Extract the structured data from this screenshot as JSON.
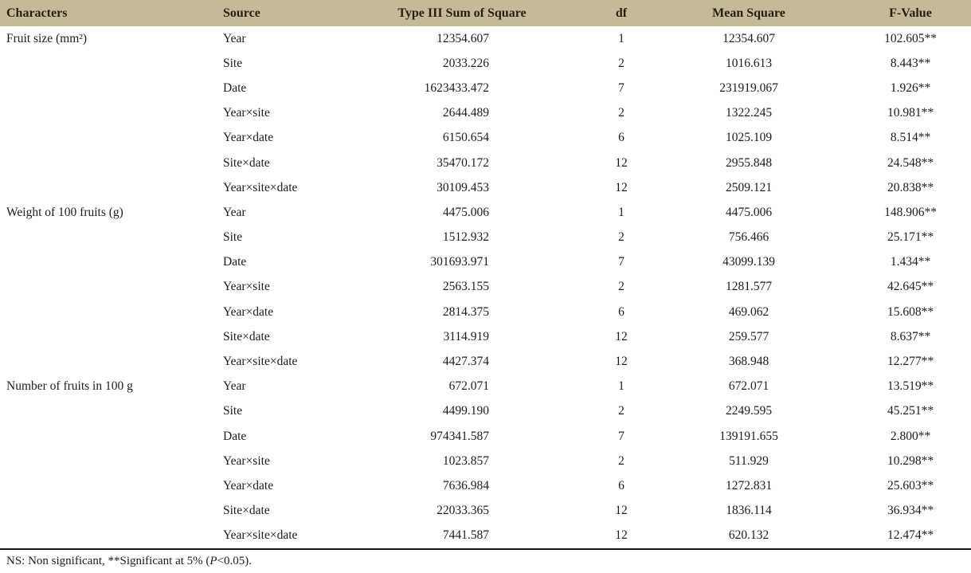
{
  "colors": {
    "header_background": "#c4bb96",
    "header_text": "#241f12",
    "body_text": "#1c1c1c",
    "bottom_rule": "#1a1a1a"
  },
  "table": {
    "columns": {
      "characters": "Characters",
      "source": "Source",
      "sum_of_square": "Type III Sum of Square",
      "df": "df",
      "mean_square": "Mean Square",
      "f_value": "F-Value"
    },
    "groups": [
      {
        "character": "Fruit size (mm²)",
        "rows": [
          {
            "source": "Year",
            "ss": "12354.607",
            "df": "1",
            "ms": "12354.607",
            "f": "102.605**"
          },
          {
            "source": "Site",
            "ss": "2033.226",
            "df": "2",
            "ms": "1016.613",
            "f": "8.443**"
          },
          {
            "source": "Date",
            "ss": "1623433.472",
            "df": "7",
            "ms": "231919.067",
            "f": "1.926**"
          },
          {
            "source": "Year×site",
            "ss": "2644.489",
            "df": "2",
            "ms": "1322.245",
            "f": "10.981**"
          },
          {
            "source": "Year×date",
            "ss": "6150.654",
            "df": "6",
            "ms": "1025.109",
            "f": "8.514**"
          },
          {
            "source": "Site×date",
            "ss": "35470.172",
            "df": "12",
            "ms": "2955.848",
            "f": "24.548**"
          },
          {
            "source": "Year×site×date",
            "ss": "30109.453",
            "df": "12",
            "ms": "2509.121",
            "f": "20.838**"
          }
        ]
      },
      {
        "character": "Weight of 100 fruits (g)",
        "rows": [
          {
            "source": "Year",
            "ss": "4475.006",
            "df": "1",
            "ms": "4475.006",
            "f": "148.906**"
          },
          {
            "source": "Site",
            "ss": "1512.932",
            "df": "2",
            "ms": "756.466",
            "f": "25.171**"
          },
          {
            "source": "Date",
            "ss": "301693.971",
            "df": "7",
            "ms": "43099.139",
            "f": "1.434**"
          },
          {
            "source": "Year×site",
            "ss": "2563.155",
            "df": "2",
            "ms": "1281.577",
            "f": "42.645**"
          },
          {
            "source": "Year×date",
            "ss": "2814.375",
            "df": "6",
            "ms": "469.062",
            "f": "15.608**"
          },
          {
            "source": "Site×date",
            "ss": "3114.919",
            "df": "12",
            "ms": "259.577",
            "f": "8.637**"
          },
          {
            "source": "Year×site×date",
            "ss": "4427.374",
            "df": "12",
            "ms": "368.948",
            "f": "12.277**"
          }
        ]
      },
      {
        "character": "Number of fruits in 100 g",
        "rows": [
          {
            "source": "Year",
            "ss": "672.071",
            "df": "1",
            "ms": "672.071",
            "f": "13.519**"
          },
          {
            "source": "Site",
            "ss": "4499.190",
            "df": "2",
            "ms": "2249.595",
            "f": "45.251**"
          },
          {
            "source": "Date",
            "ss": "974341.587",
            "df": "7",
            "ms": "139191.655",
            "f": "2.800**"
          },
          {
            "source": "Year×site",
            "ss": "1023.857",
            "df": "2",
            "ms": "511.929",
            "f": "10.298**"
          },
          {
            "source": "Year×date",
            "ss": "7636.984",
            "df": "6",
            "ms": "1272.831",
            "f": "25.603**"
          },
          {
            "source": "Site×date",
            "ss": "22033.365",
            "df": "12",
            "ms": "1836.114",
            "f": "36.934**"
          },
          {
            "source": "Year×site×date",
            "ss": "7441.587",
            "df": "12",
            "ms": "620.132",
            "f": "12.474**"
          }
        ]
      }
    ]
  },
  "footnote": {
    "prefix": "NS: Non significant, **Significant at 5% (",
    "p_italic": "P",
    "suffix": "<0.05)."
  }
}
